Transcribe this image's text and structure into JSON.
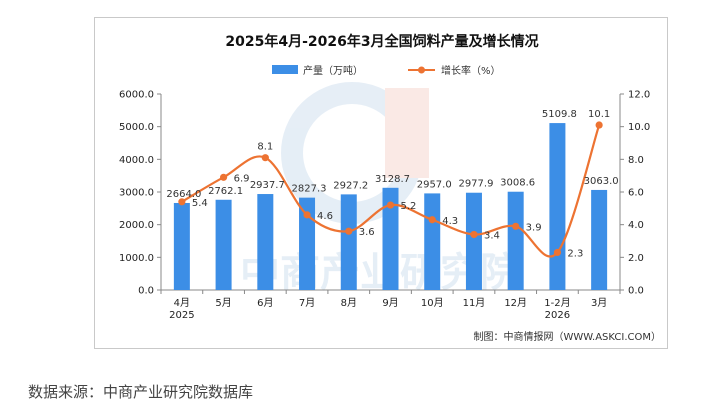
{
  "chart_data": {
    "type": "bar+line",
    "title": "2025年4月-2026年3月全国饲料产量及增长情况",
    "categories": [
      "4月",
      "5月",
      "6月",
      "7月",
      "8月",
      "9月",
      "10月",
      "11月",
      "12月",
      "1-2月",
      "3月"
    ],
    "category_years": [
      "2025",
      "",
      "",
      "",
      "",
      "",
      "",
      "",
      "",
      "2026",
      ""
    ],
    "series": [
      {
        "name": "产量（万吨）",
        "kind": "bar",
        "axis": "left",
        "values": [
          2664.0,
          2762.1,
          2937.7,
          2827.3,
          2927.2,
          3128.7,
          2957.0,
          2977.9,
          3008.6,
          5109.8,
          3063.0
        ],
        "labels": [
          "2664.0",
          "2762.1",
          "2937.7",
          "2827.3",
          "2927.2",
          "3128.7",
          "2957.0",
          "2977.9",
          "3008.6",
          "5109.8",
          "3063.0"
        ]
      },
      {
        "name": "增长率（%）",
        "kind": "line",
        "axis": "right",
        "values": [
          5.4,
          6.9,
          8.1,
          4.6,
          3.6,
          5.2,
          4.3,
          3.4,
          3.9,
          2.3,
          10.1
        ],
        "labels": [
          "5.4",
          "6.9",
          "8.1",
          "4.6",
          "3.6",
          "5.2",
          "4.3",
          "3.4",
          "3.9",
          "2.3",
          "10.1"
        ]
      }
    ],
    "y_left": {
      "min": 0,
      "max": 6000,
      "ticks": [
        "0.0",
        "1000.0",
        "2000.0",
        "3000.0",
        "4000.0",
        "5000.0",
        "6000.0"
      ]
    },
    "y_right": {
      "min": 0,
      "max": 12,
      "ticks": [
        "0.0",
        "2.0",
        "4.0",
        "6.0",
        "8.0",
        "10.0",
        "12.0"
      ]
    },
    "watermark": "中商产业研究院",
    "credit": "制图：中商情报网（WWW.ASKCI.COM）",
    "colors": {
      "bar": "#3c8ee6",
      "line": "#ed7332",
      "axis": "#888888"
    }
  },
  "source_note": "数据来源：中商产业研究院数据库"
}
